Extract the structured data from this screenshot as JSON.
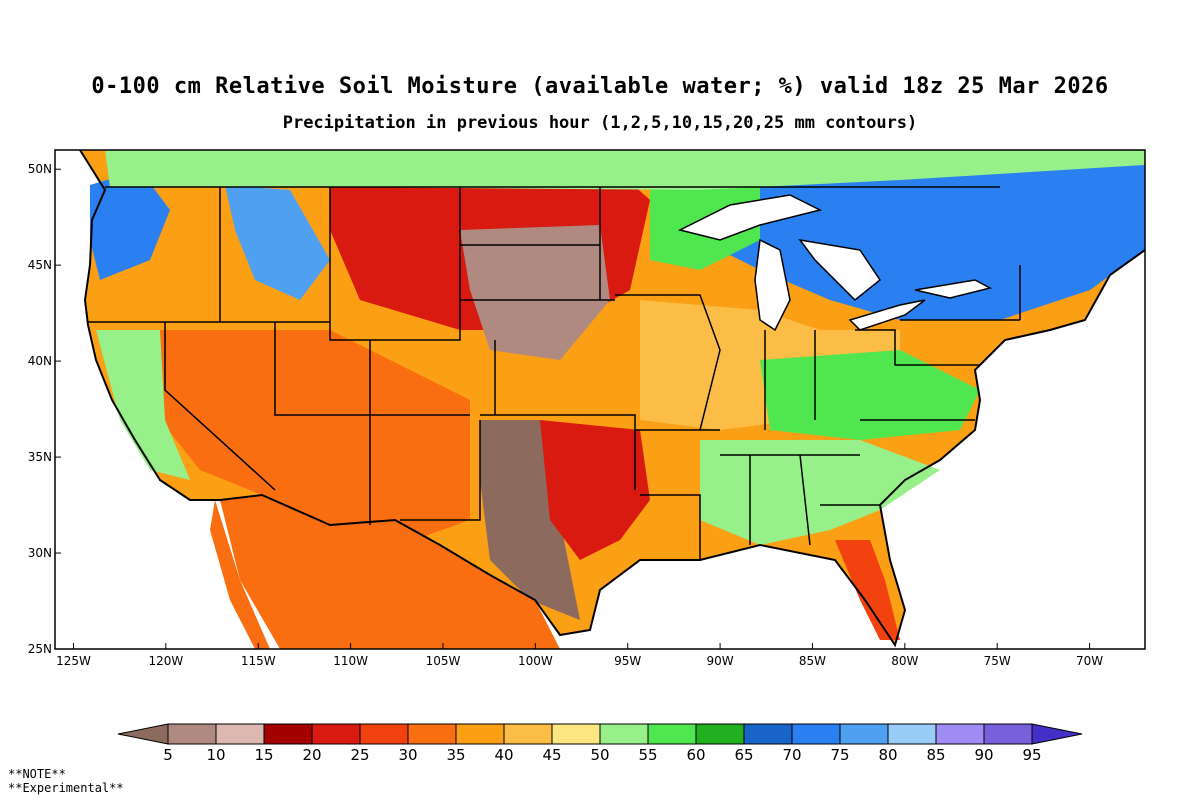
{
  "header": {
    "title": "0-100 cm Relative Soil Moisture (available water; %) valid 18z 25 Mar 2026",
    "subtitle": "Precipitation in previous hour (1,2,5,10,15,20,25 mm contours)"
  },
  "map": {
    "lat_range": [
      25,
      51
    ],
    "lon_range": [
      -126,
      -67
    ],
    "lat_ticks": [
      "25N",
      "30N",
      "35N",
      "40N",
      "45N",
      "50N"
    ],
    "lon_ticks": [
      "125W",
      "120W",
      "115W",
      "110W",
      "105W",
      "100W",
      "95W",
      "90W",
      "85W",
      "80W",
      "75W",
      "70W"
    ],
    "lat_values": [
      25,
      30,
      35,
      40,
      45,
      50
    ],
    "lon_values": [
      -125,
      -120,
      -115,
      -110,
      -105,
      -100,
      -95,
      -90,
      -85,
      -80,
      -75,
      -70
    ]
  },
  "colorbar": {
    "labels": [
      "5",
      "10",
      "15",
      "20",
      "25",
      "30",
      "35",
      "40",
      "45",
      "50",
      "55",
      "60",
      "65",
      "70",
      "75",
      "80",
      "85",
      "90",
      "95"
    ],
    "colors": [
      "#8c6b5e",
      "#b08a80",
      "#dcb8b0",
      "#a50000",
      "#d91a10",
      "#f2420f",
      "#fa6e12",
      "#fb9f14",
      "#fbbd45",
      "#fde582",
      "#98f08a",
      "#50e650",
      "#20b020",
      "#1864c8",
      "#2a80f0",
      "#50a0f2",
      "#96ccf6",
      "#a08cf5",
      "#7860dc",
      "#4430c8"
    ]
  },
  "notes": {
    "line1": "**NOTE**",
    "line2": "**Experimental**"
  }
}
